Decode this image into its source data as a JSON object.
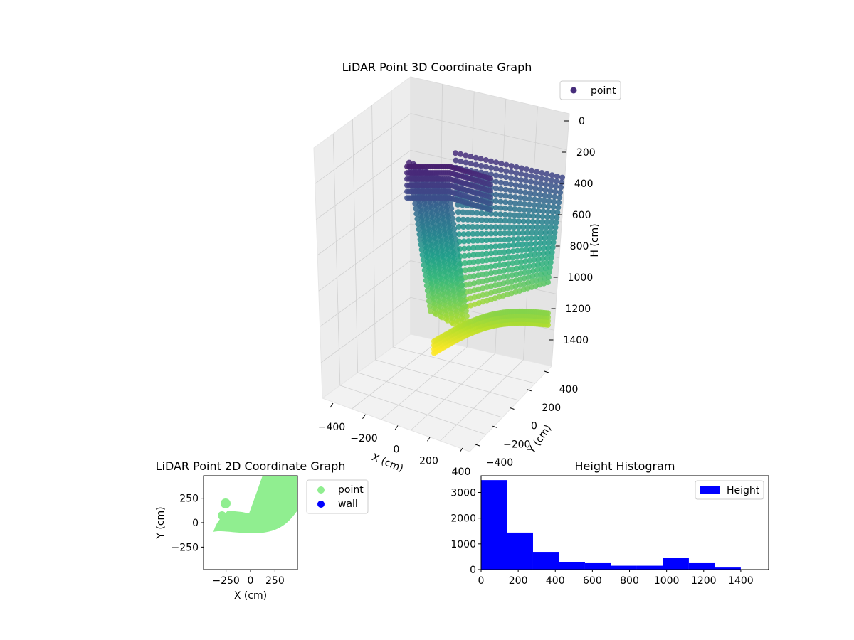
{
  "chart_data": [
    {
      "type": "scatter3d",
      "title": "LiDAR Point 3D Coordinate Graph",
      "xlabel": "X (cm)",
      "ylabel": "Y (cm)",
      "zlabel": "H (cm)",
      "xticks": [
        "−400",
        "−200",
        "0",
        "200",
        "400"
      ],
      "yticks": [
        "−400",
        "−200",
        "0",
        "200",
        "400"
      ],
      "zticks": [
        "0",
        "200",
        "400",
        "600",
        "800",
        "1000",
        "1200",
        "1400"
      ],
      "xlim": [
        -450,
        450
      ],
      "ylim": [
        -450,
        450
      ],
      "zlim": [
        0,
        1500
      ],
      "zinverted": true,
      "colormap": "viridis",
      "legend": [
        "point"
      ],
      "legend_position": "top-right"
    },
    {
      "type": "scatter",
      "title": "LiDAR Point 2D Coordinate Graph",
      "xlabel": "X (cm)",
      "ylabel": "Y (cm)",
      "xticks": [
        "−250",
        "0",
        "250"
      ],
      "yticks": [
        "250",
        "0",
        "−250"
      ],
      "xlim": [
        -480,
        480
      ],
      "ylim": [
        -480,
        480
      ],
      "series": [
        {
          "name": "point",
          "color": "#90ee90"
        },
        {
          "name": "wall",
          "color": "#0000ff"
        }
      ],
      "legend_position": "outside-right"
    },
    {
      "type": "bar",
      "title": "Height Histogram",
      "xlabel": "",
      "ylabel": "",
      "xticks": [
        "0",
        "200",
        "400",
        "600",
        "800",
        "1000",
        "1200",
        "1400"
      ],
      "yticks": [
        "0",
        "1000",
        "2000",
        "3000"
      ],
      "xlim": [
        0,
        1550
      ],
      "ylim": [
        0,
        3650
      ],
      "bin_edges": [
        0,
        140,
        280,
        420,
        560,
        700,
        840,
        980,
        1120,
        1260,
        1400
      ],
      "values": [
        3480,
        1440,
        690,
        290,
        250,
        150,
        150,
        470,
        250,
        80
      ],
      "series": [
        {
          "name": "Height",
          "color": "#0000ff"
        }
      ],
      "legend_position": "top-right"
    }
  ]
}
